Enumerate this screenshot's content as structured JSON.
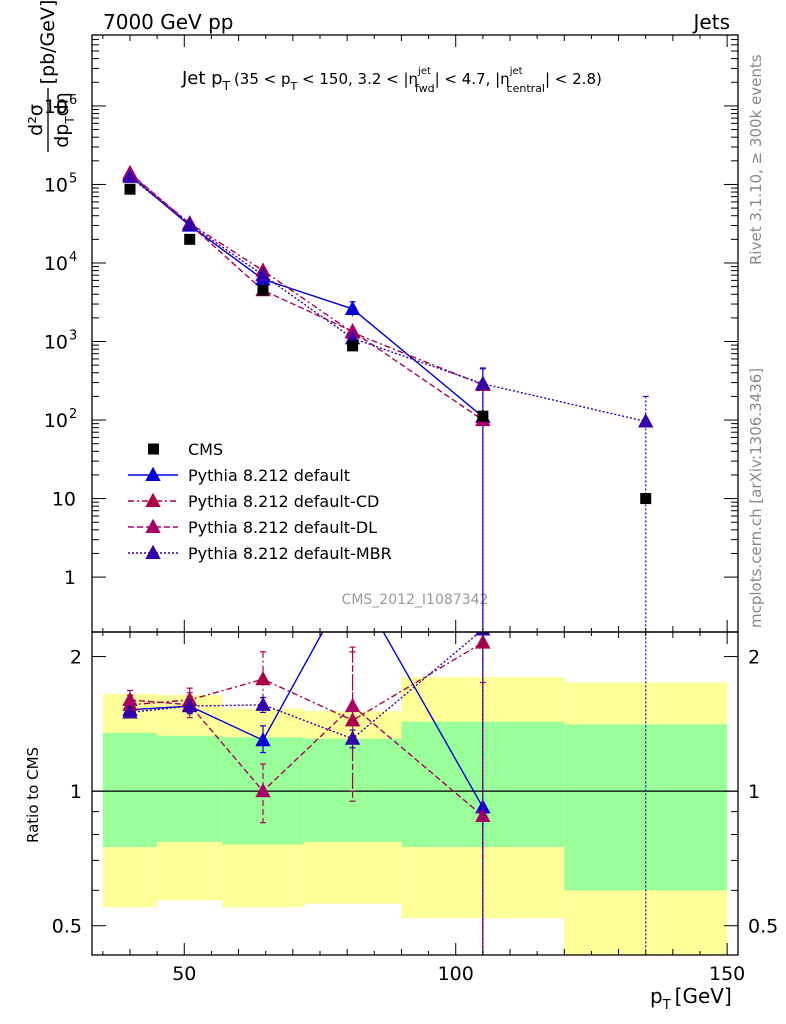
{
  "header": {
    "left": "7000 GeV pp",
    "right": "Jets"
  },
  "side_labels": {
    "rivet": "Rivet 3.1.10, ≥ 300k events",
    "mcplots": "mcplots.cern.ch [arXiv:1306.3436]"
  },
  "watermark": "CMS_2012_I1087342",
  "plot_title": {
    "main": "Jet p",
    "main_sub": "T",
    "range_open": "(35 < p",
    "range_sub": "T",
    "range_mid": " < 150, 3.2 < |η",
    "fwd_sup": "jet",
    "fwd_sub": "fwd",
    "range_mid2": "| < 4.7, |η",
    "cen_sup": "jet",
    "cen_sub": "central",
    "range_close": "| < 2.8)"
  },
  "y_label": {
    "num": "d²σ",
    "den_a": "dp",
    "den_sub": "T",
    "den_b": "dη",
    "unit": "[pb/GeV]"
  },
  "ratio_label": "Ratio to CMS",
  "x_label": {
    "main": "p",
    "sub": "T",
    "unit": "[GeV]"
  },
  "colors": {
    "data": "#000000",
    "default": "#0000dd",
    "cd": "#aa0044",
    "dl": "#aa0066",
    "mbr": "#3300aa",
    "band_green": "#99ff99",
    "band_yellow": "#ffff99"
  },
  "chart_data": {
    "type": "scatter",
    "title": "Jet pT (35 < pT < 150, 3.2 < |eta_fwd| < 4.7, |eta_central| < 2.8)",
    "xlabel": "pT [GeV]",
    "ylabel": "d2sigma/dpT deta [pb/GeV]",
    "yscale": "log",
    "xlim": [
      33,
      152
    ],
    "ylim": [
      0.2,
      8000000
    ],
    "x_ticks": [
      "50",
      "100",
      "150"
    ],
    "y_ticks": [
      "1",
      "10",
      "10^2",
      "10^3",
      "10^4",
      "10^5",
      "10^6"
    ],
    "ratio_ylabel": "Ratio to CMS",
    "ratio_ylim": [
      0.43,
      2.27
    ],
    "ratio_ticks": [
      "0.5",
      "1",
      "2"
    ],
    "bins": [
      [
        35,
        45
      ],
      [
        45,
        57
      ],
      [
        57,
        72
      ],
      [
        72,
        90
      ],
      [
        90,
        120
      ],
      [
        120,
        150
      ]
    ],
    "series": [
      {
        "name": "CMS",
        "key": "data",
        "style": "square",
        "x": [
          40,
          51,
          64.5,
          81,
          105,
          135
        ],
        "y": [
          87000,
          20000,
          4500,
          880,
          112,
          10
        ],
        "ratio": [
          1,
          1,
          1,
          1,
          1,
          1
        ],
        "band_green": [
          [
            0.75,
            1.35
          ],
          [
            0.77,
            1.33
          ],
          [
            0.76,
            1.32
          ],
          [
            0.77,
            1.31
          ],
          [
            0.75,
            1.43
          ],
          [
            0.6,
            1.41
          ]
        ],
        "band_yellow": [
          [
            0.55,
            1.65
          ],
          [
            0.57,
            1.64
          ],
          [
            0.55,
            1.53
          ],
          [
            0.56,
            1.51
          ],
          [
            0.52,
            1.8
          ],
          [
            0.43,
            1.75
          ]
        ]
      },
      {
        "name": "Pythia 8.212 default",
        "key": "default",
        "dash": "",
        "x": [
          40,
          51,
          64.5,
          81,
          105
        ],
        "y": [
          130000,
          30000,
          6200,
          2600,
          110
        ],
        "ratio": [
          1.52,
          1.55,
          1.3,
          3.0,
          0.92
        ],
        "yerr_hi": [
          140000,
          32000,
          7000,
          3200,
          460
        ],
        "yerr_lo": [
          120000,
          28000,
          5500,
          2100,
          0.001
        ],
        "ratio_err": [
          [
            1.47,
            1.59
          ],
          [
            1.49,
            1.63
          ],
          [
            1.22,
            1.4
          ],
          [
            2.5,
            3.5
          ],
          [
            0.3,
            2.3
          ]
        ]
      },
      {
        "name": "Pythia 8.212 default-CD",
        "key": "cd",
        "dash": "6,3,2,3",
        "x": [
          40,
          51,
          64.5,
          81,
          105
        ],
        "y": [
          135000,
          32000,
          8000,
          1300,
          280
        ],
        "ratio": [
          1.56,
          1.6,
          1.78,
          1.44,
          2.15
        ],
        "ratio_err": [
          [
            1.48,
            1.64
          ],
          [
            1.5,
            1.7
          ],
          [
            1.55,
            2.05
          ],
          [
            0.95,
            2.05
          ],
          [
            0.3,
            2.3
          ]
        ]
      },
      {
        "name": "Pythia 8.212 default-DL",
        "key": "dl",
        "dash": "6,3",
        "x": [
          40,
          51,
          64.5,
          81,
          105
        ],
        "y": [
          140000,
          31000,
          4500,
          1350,
          100
        ],
        "ratio": [
          1.6,
          1.56,
          1.0,
          1.55,
          0.88
        ],
        "ratio_err": [
          [
            1.52,
            1.68
          ],
          [
            1.46,
            1.66
          ],
          [
            0.85,
            1.15
          ],
          [
            1.0,
            2.1
          ],
          [
            0.3,
            1.75
          ]
        ]
      },
      {
        "name": "Pythia 8.212 default-MBR",
        "key": "mbr",
        "dash": "2,2",
        "x": [
          40,
          51,
          64.5,
          81,
          105,
          135
        ],
        "y": [
          125000,
          31000,
          7000,
          1100,
          290,
          96
        ],
        "ratio": [
          1.5,
          1.55,
          1.56,
          1.31,
          2.3,
          9.6
        ],
        "yerr_hi": [
          null,
          null,
          null,
          null,
          450,
          200
        ],
        "yerr_lo": [
          null,
          null,
          null,
          null,
          0.001,
          0.001
        ],
        "ratio_err": [
          [
            1.46,
            1.54
          ],
          [
            1.5,
            1.6
          ],
          [
            1.5,
            1.62
          ],
          [
            1.25,
            1.37
          ],
          [
            0.3,
            3.0
          ],
          [
            0.3,
            15
          ]
        ]
      }
    ]
  }
}
